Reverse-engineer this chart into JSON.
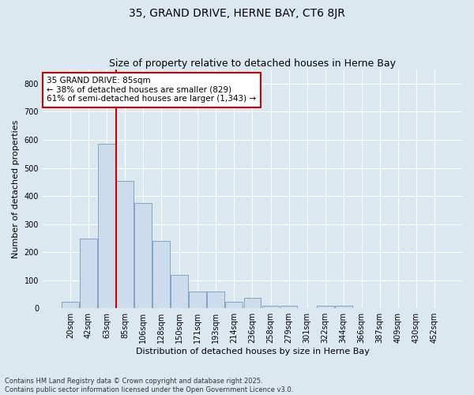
{
  "title": "35, GRAND DRIVE, HERNE BAY, CT6 8JR",
  "subtitle": "Size of property relative to detached houses in Herne Bay",
  "xlabel": "Distribution of detached houses by size in Herne Bay",
  "ylabel": "Number of detached properties",
  "categories": [
    "20sqm",
    "42sqm",
    "63sqm",
    "85sqm",
    "106sqm",
    "128sqm",
    "150sqm",
    "171sqm",
    "193sqm",
    "214sqm",
    "236sqm",
    "258sqm",
    "279sqm",
    "301sqm",
    "322sqm",
    "344sqm",
    "366sqm",
    "387sqm",
    "409sqm",
    "430sqm",
    "452sqm"
  ],
  "values": [
    22,
    248,
    585,
    455,
    375,
    240,
    120,
    60,
    60,
    22,
    38,
    10,
    10,
    0,
    10,
    10,
    0,
    0,
    0,
    0,
    0
  ],
  "bar_color": "#ccdcec",
  "bar_edge_color": "#7799bb",
  "vline_color": "#cc0000",
  "annotation_text": "35 GRAND DRIVE: 85sqm\n← 38% of detached houses are smaller (829)\n61% of semi-detached houses are larger (1,343) →",
  "annotation_box_color": "#cc0000",
  "fig_background_color": "#dce8f0",
  "ax_background_color": "#dce8f0",
  "grid_color": "#ffffff",
  "ylim": [
    0,
    850
  ],
  "yticks": [
    0,
    100,
    200,
    300,
    400,
    500,
    600,
    700,
    800
  ],
  "footer": "Contains HM Land Registry data © Crown copyright and database right 2025.\nContains public sector information licensed under the Open Government Licence v3.0.",
  "title_fontsize": 10,
  "subtitle_fontsize": 9,
  "axis_label_fontsize": 8,
  "tick_fontsize": 7,
  "annotation_fontsize": 7.5,
  "footer_fontsize": 6
}
